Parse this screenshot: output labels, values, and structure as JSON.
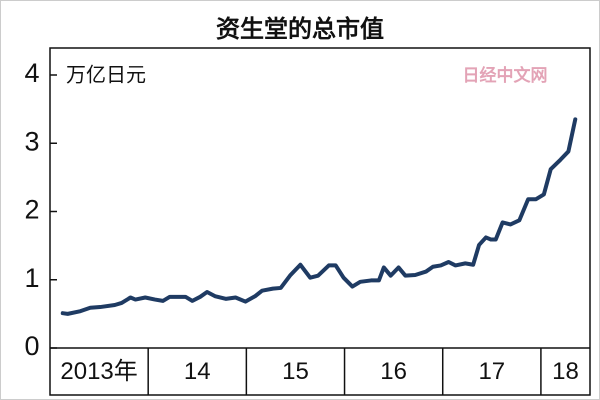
{
  "chart_data": {
    "type": "line",
    "title": "资生堂的总市值",
    "y_label": "万亿日元",
    "watermark": "日经中文网",
    "xlim": [
      2013,
      2018.5
    ],
    "xticks": [
      {
        "value": 2013,
        "label": "2013年"
      },
      {
        "value": 2014,
        "label": "14"
      },
      {
        "value": 2015,
        "label": "15"
      },
      {
        "value": 2016,
        "label": "16"
      },
      {
        "value": 2017,
        "label": "17"
      },
      {
        "value": 2018,
        "label": "18"
      }
    ],
    "ylim": [
      0,
      4
    ],
    "yticks": [
      0,
      1,
      2,
      3,
      4
    ],
    "grid": false,
    "x": [
      2013.13,
      2013.18,
      2013.31,
      2013.41,
      2013.51,
      2013.66,
      2013.73,
      2013.82,
      2013.87,
      2013.97,
      2014.07,
      2014.15,
      2014.22,
      2014.38,
      2014.45,
      2014.53,
      2014.6,
      2014.68,
      2014.79,
      2014.89,
      2014.99,
      2015.09,
      2015.16,
      2015.27,
      2015.35,
      2015.45,
      2015.55,
      2015.65,
      2015.73,
      2015.84,
      2015.91,
      2015.99,
      2016.08,
      2016.16,
      2016.27,
      2016.35,
      2016.4,
      2016.47,
      2016.55,
      2016.62,
      2016.72,
      2016.83,
      2016.9,
      2016.98,
      2017.06,
      2017.13,
      2017.23,
      2017.31,
      2017.37,
      2017.44,
      2017.49,
      2017.54,
      2017.61,
      2017.69,
      2017.78,
      2017.87,
      2017.95,
      2018.03,
      2018.1,
      2018.2,
      2018.28,
      2018.35
    ],
    "series": [
      {
        "color": "#1f3b63",
        "values": [
          0.51,
          0.5,
          0.54,
          0.59,
          0.6,
          0.63,
          0.66,
          0.74,
          0.71,
          0.74,
          0.71,
          0.69,
          0.75,
          0.75,
          0.69,
          0.75,
          0.82,
          0.76,
          0.72,
          0.74,
          0.68,
          0.76,
          0.84,
          0.87,
          0.88,
          1.07,
          1.22,
          1.03,
          1.06,
          1.21,
          1.21,
          1.03,
          0.9,
          0.97,
          0.99,
          0.99,
          1.18,
          1.06,
          1.18,
          1.06,
          1.07,
          1.12,
          1.19,
          1.21,
          1.26,
          1.21,
          1.24,
          1.22,
          1.51,
          1.62,
          1.59,
          1.59,
          1.84,
          1.81,
          1.87,
          2.18,
          2.18,
          2.25,
          2.62,
          2.76,
          2.88,
          3.35
        ]
      }
    ]
  }
}
